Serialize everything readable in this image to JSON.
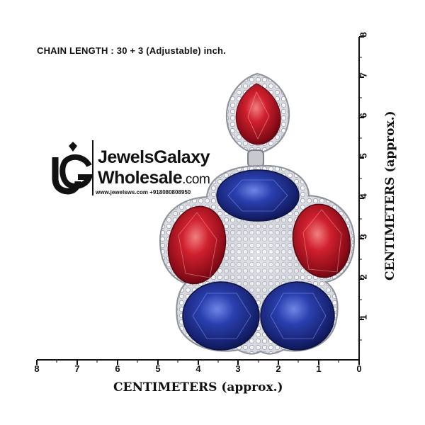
{
  "chain_length_text": "CHAIN LENGTH : 30 + 3 (Adjustable) inch.",
  "x_axis": {
    "title": "CENTIMETERS (approx.)",
    "ticks": [
      "8",
      "7",
      "6",
      "5",
      "4",
      "3",
      "2",
      "1",
      "0"
    ]
  },
  "y_axis": {
    "title": "CENTIMETERS (approx.)",
    "ticks": [
      "1",
      "2",
      "3",
      "4",
      "5",
      "6",
      "7",
      "8"
    ]
  },
  "brand": {
    "name_line1": "JewelsGalaxy",
    "name_line2_main": "Wholesale",
    "name_line2_suffix": ".com",
    "contact": "www.jewelsws.com  +918080808950",
    "logo_icon": "jg-monogram-logo"
  },
  "product": {
    "icon": "pendant-earring",
    "stone_colors": {
      "red": "#c0142a",
      "blue": "#1d2f8c",
      "metal": "#c8c8c8"
    }
  }
}
